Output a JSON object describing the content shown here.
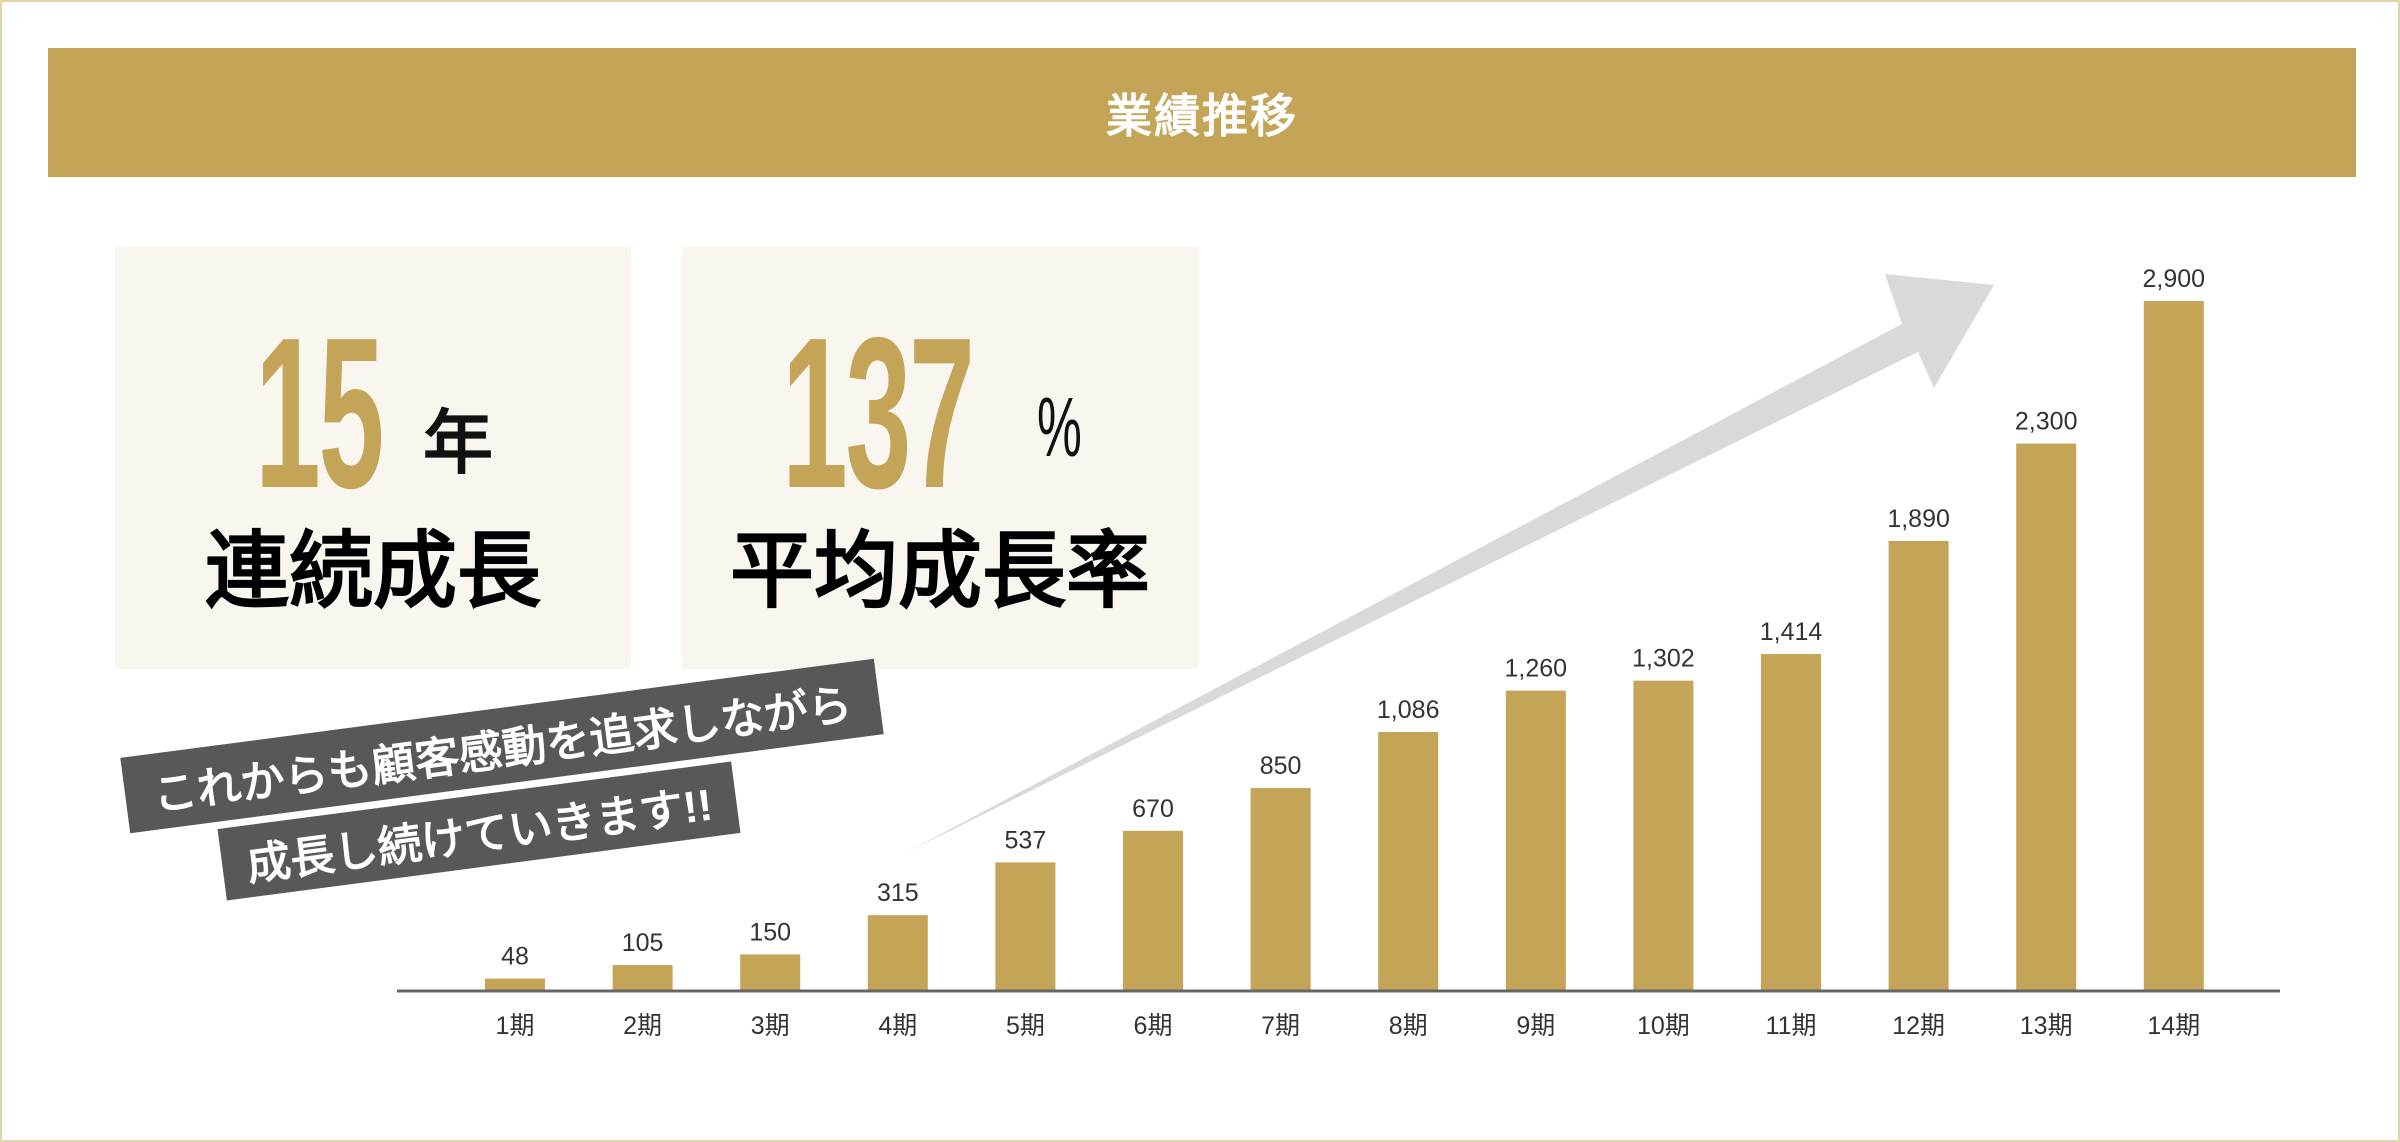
{
  "header": {
    "title": "業績推移"
  },
  "stats": [
    {
      "value": "15",
      "unit": "年",
      "label": "連続成長"
    },
    {
      "value": "137",
      "unit": "%",
      "label": "平均成長率"
    }
  ],
  "message": {
    "line1": "これからも顧客感動を追求しながら",
    "line2": "成長し続けていきます!!"
  },
  "colors": {
    "accent": "#c4a457",
    "arrow": "#d9d9d9",
    "ribbon": "#595757",
    "panel": "#f8f6ef"
  },
  "chart_data": {
    "type": "bar",
    "title": "業績推移",
    "xlabel": "",
    "ylabel": "",
    "categories": [
      "1期",
      "2期",
      "3期",
      "4期",
      "5期",
      "6期",
      "7期",
      "8期",
      "9期",
      "10期",
      "11期",
      "12期",
      "13期",
      "14期"
    ],
    "values": [
      48,
      105,
      150,
      315,
      537,
      670,
      850,
      1086,
      1260,
      1302,
      1414,
      1890,
      2300,
      2900
    ],
    "value_labels": [
      "48",
      "105",
      "150",
      "315",
      "537",
      "670",
      "850",
      "1,086",
      "1,260",
      "1,302",
      "1,414",
      "1,890",
      "2,300",
      "2,900"
    ],
    "ylim": [
      0,
      2900
    ],
    "grid": false,
    "legend": "none"
  }
}
